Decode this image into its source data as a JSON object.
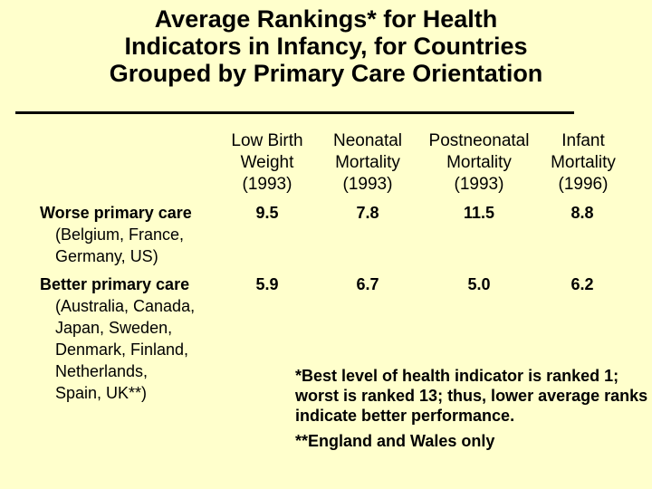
{
  "title": {
    "lines": [
      "Average Rankings* for Health",
      "Indicators in Infancy, for Countries",
      "Grouped by Primary Care Orientation"
    ]
  },
  "columns": [
    {
      "lines": [
        "Low Birth",
        "Weight",
        "(1993)"
      ]
    },
    {
      "lines": [
        "Neonatal",
        "Mortality",
        "(1993)"
      ]
    },
    {
      "lines": [
        "Postneonatal",
        "Mortality",
        "(1993)"
      ]
    },
    {
      "lines": [
        "Infant",
        "Mortality",
        "(1996)"
      ]
    }
  ],
  "rows": [
    {
      "name": "Worse primary care",
      "countries": [
        "(Belgium, France,",
        "Germany, US)"
      ],
      "values": [
        "9.5",
        "7.8",
        "11.5",
        "8.8"
      ]
    },
    {
      "name": "Better primary care",
      "countries": [
        "(Australia, Canada,",
        "Japan, Sweden,",
        "Denmark, Finland,",
        "Netherlands,",
        "Spain, UK**)"
      ],
      "values": [
        "5.9",
        "6.7",
        "5.0",
        "6.2"
      ]
    }
  ],
  "footnotes": [
    "*Best level of health indicator is ranked 1; worst is ranked 13; thus, lower average ranks indicate better performance.",
    "**England and Wales only"
  ],
  "colors": {
    "background": "#ffffcc",
    "text": "#000000"
  }
}
